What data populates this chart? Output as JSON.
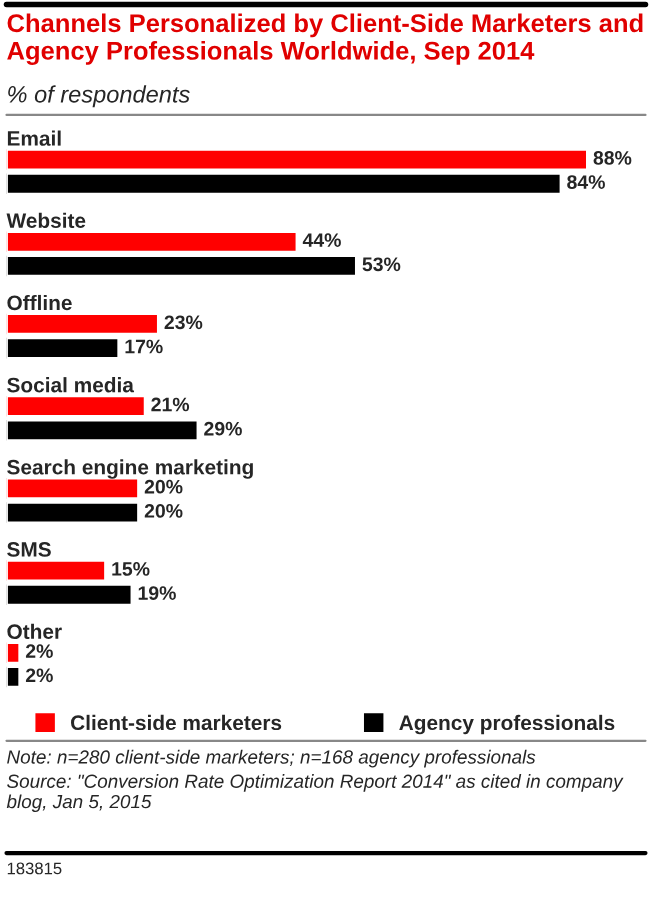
{
  "chart_data": {
    "type": "bar",
    "orientation": "horizontal",
    "title": "Channels Personalized by Client-Side Marketers and Agency Professionals Worldwide, Sep 2014",
    "subtitle": "% of respondents",
    "categories": [
      "Email",
      "Website",
      "Offline",
      "Social media",
      "Search engine marketing",
      "SMS",
      "Other"
    ],
    "series": [
      {
        "name": "Client-side marketers",
        "color": "#ff0000",
        "values": [
          88,
          44,
          23,
          21,
          20,
          15,
          2
        ],
        "value_labels": [
          "88%",
          "44%",
          "23%",
          "21%",
          "20%",
          "15%",
          "2%"
        ]
      },
      {
        "name": "Agency professionals",
        "color": "#000000",
        "values": [
          84,
          53,
          17,
          29,
          20,
          19,
          2
        ],
        "value_labels": [
          "84%",
          "53%",
          "17%",
          "29%",
          "20%",
          "19%",
          "2%"
        ]
      }
    ],
    "legend": "bottom",
    "annotations": [
      "Note: n=280 client-side marketers; n=168 agency professionals",
      "Source: \"Conversion Rate Optimization Report 2014\" as cited in company blog, Jan 5, 2015",
      "183815"
    ]
  }
}
